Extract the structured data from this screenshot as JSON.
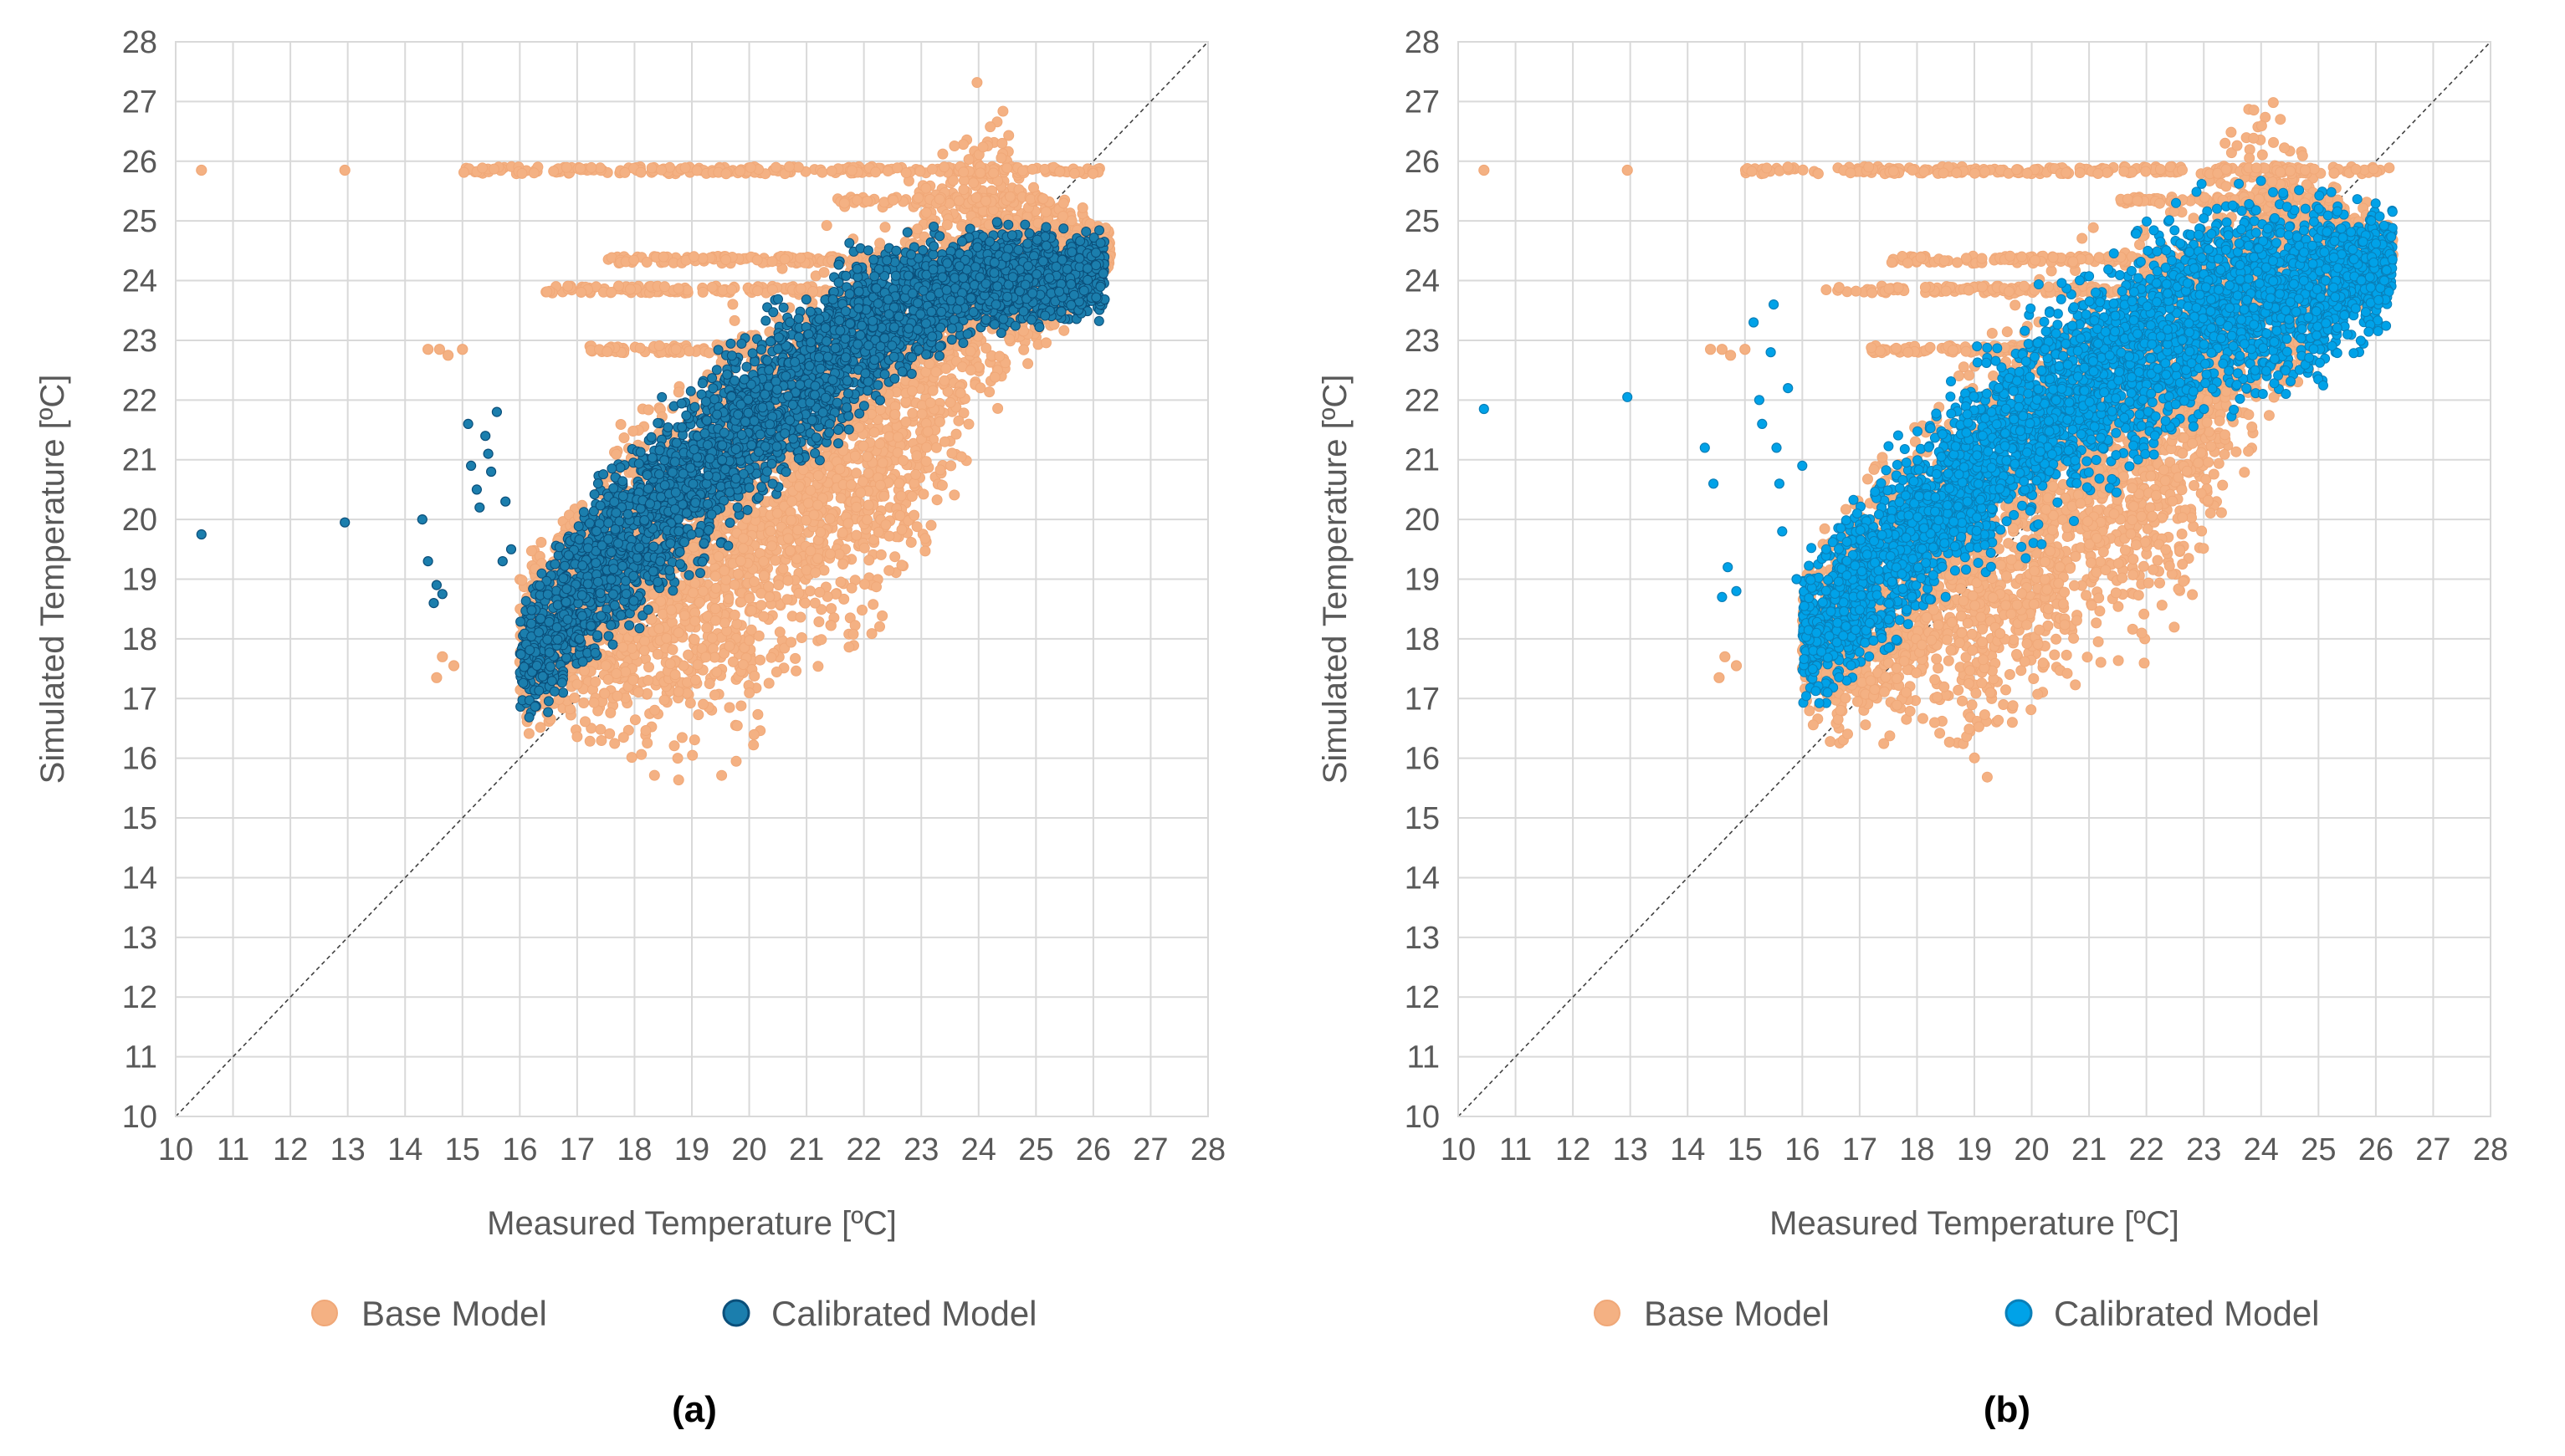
{
  "chart_data": [
    {
      "type": "scatter",
      "caption": "(a)",
      "xlabel": "Measured Temperature [ºC]",
      "ylabel": "Simulated Temperature [ºC]",
      "xlim": [
        10,
        28
      ],
      "ylim": [
        10,
        28
      ],
      "x_ticks": [
        10,
        11,
        12,
        13,
        14,
        15,
        16,
        17,
        18,
        19,
        20,
        21,
        22,
        23,
        24,
        25,
        26,
        27,
        28
      ],
      "y_ticks": [
        10,
        11,
        12,
        13,
        14,
        15,
        16,
        17,
        18,
        19,
        20,
        21,
        22,
        23,
        24,
        25,
        26,
        27,
        28
      ],
      "grid": true,
      "reference_line": "y = x (dashed)",
      "legend_position": "bottom",
      "series": [
        {
          "name": "Base Model",
          "color": "#f4b183",
          "outliers": [
            [
              10.45,
              25.85
            ],
            [
              12.95,
              25.85
            ],
            [
              14.4,
              22.85
            ],
            [
              14.6,
              22.85
            ],
            [
              14.75,
              22.75
            ],
            [
              15.0,
              22.85
            ],
            [
              14.55,
              17.35
            ],
            [
              14.65,
              17.7
            ],
            [
              14.85,
              17.55
            ]
          ],
          "plateaus": [
            {
              "y": 25.85,
              "x_range": [
                15.0,
                26.3
              ]
            },
            {
              "y": 24.35,
              "x_range": [
                17.5,
                25.0
              ]
            },
            {
              "y": 23.85,
              "x_range": [
                16.4,
                24.5
              ]
            },
            {
              "y": 22.85,
              "x_range": [
                17.2,
                23.0
              ]
            },
            {
              "y": 25.35,
              "x_range": [
                21.5,
                25.5
              ]
            }
          ],
          "cloud_upper_edge": [
            [
              16.0,
              19.5
            ],
            [
              17.0,
              21.0
            ],
            [
              18.0,
              22.5
            ],
            [
              19.0,
              23.5
            ],
            [
              20.0,
              24.5
            ],
            [
              21.0,
              25.2
            ],
            [
              22.0,
              25.6
            ],
            [
              23.0,
              26.6
            ],
            [
              24.0,
              27.8
            ],
            [
              25.0,
              26.0
            ],
            [
              26.3,
              25.0
            ]
          ],
          "cloud_lower_edge": [
            [
              16.0,
              16.2
            ],
            [
              17.0,
              15.8
            ],
            [
              18.0,
              15.6
            ],
            [
              19.0,
              15.0
            ],
            [
              20.0,
              15.4
            ],
            [
              21.0,
              16.7
            ],
            [
              22.0,
              17.2
            ],
            [
              23.0,
              18.3
            ],
            [
              24.0,
              20.8
            ],
            [
              25.0,
              22.5
            ],
            [
              26.3,
              24.0
            ]
          ]
        },
        {
          "name": "Calibrated Model",
          "color": "#1b7ead",
          "outliers": [
            [
              10.45,
              19.75
            ],
            [
              12.95,
              19.95
            ],
            [
              14.3,
              20.0
            ],
            [
              14.4,
              19.3
            ],
            [
              14.5,
              18.6
            ],
            [
              14.55,
              18.9
            ],
            [
              14.65,
              18.75
            ],
            [
              15.1,
              21.6
            ],
            [
              15.15,
              20.9
            ],
            [
              15.25,
              20.5
            ],
            [
              15.3,
              20.2
            ],
            [
              15.4,
              21.4
            ],
            [
              15.45,
              21.1
            ],
            [
              15.5,
              20.8
            ],
            [
              15.6,
              21.8
            ],
            [
              15.7,
              19.3
            ],
            [
              15.75,
              20.3
            ],
            [
              15.85,
              19.5
            ]
          ],
          "cloud_upper_edge": [
            [
              16.0,
              19.0
            ],
            [
              17.0,
              20.6
            ],
            [
              18.0,
              21.8
            ],
            [
              19.0,
              22.8
            ],
            [
              20.0,
              23.5
            ],
            [
              21.0,
              24.3
            ],
            [
              22.0,
              24.9
            ],
            [
              23.0,
              25.0
            ],
            [
              24.0,
              25.1
            ],
            [
              25.0,
              25.1
            ],
            [
              26.2,
              25.1
            ]
          ],
          "cloud_lower_edge": [
            [
              16.0,
              16.2
            ],
            [
              17.0,
              16.8
            ],
            [
              18.0,
              17.8
            ],
            [
              19.0,
              18.8
            ],
            [
              20.0,
              19.6
            ],
            [
              21.0,
              20.5
            ],
            [
              22.0,
              21.5
            ],
            [
              23.0,
              22.3
            ],
            [
              24.0,
              23.0
            ],
            [
              25.0,
              23.0
            ],
            [
              26.2,
              23.0
            ]
          ]
        }
      ]
    },
    {
      "type": "scatter",
      "caption": "(b)",
      "xlabel": "Measured Temperature [ºC]",
      "ylabel": "Simulated Temperature [ºC]",
      "xlim": [
        10,
        28
      ],
      "ylim": [
        10,
        28
      ],
      "x_ticks": [
        10,
        11,
        12,
        13,
        14,
        15,
        16,
        17,
        18,
        19,
        20,
        21,
        22,
        23,
        24,
        25,
        26,
        27,
        28
      ],
      "y_ticks": [
        10,
        11,
        12,
        13,
        14,
        15,
        16,
        17,
        18,
        19,
        20,
        21,
        22,
        23,
        24,
        25,
        26,
        27,
        28
      ],
      "grid": true,
      "reference_line": "y = x (dashed)",
      "legend_position": "bottom",
      "series": [
        {
          "name": "Base Model",
          "color": "#f4b183",
          "outliers": [
            [
              10.45,
              25.85
            ],
            [
              12.95,
              25.85
            ],
            [
              14.4,
              22.85
            ],
            [
              14.6,
              22.85
            ],
            [
              14.75,
              22.75
            ],
            [
              15.0,
              22.85
            ],
            [
              14.55,
              17.35
            ],
            [
              14.65,
              17.7
            ],
            [
              14.85,
              17.55
            ]
          ],
          "plateaus": [
            {
              "y": 25.85,
              "x_range": [
                15.0,
                26.3
              ]
            },
            {
              "y": 24.35,
              "x_range": [
                17.5,
                25.0
              ]
            },
            {
              "y": 23.85,
              "x_range": [
                16.4,
                24.5
              ]
            },
            {
              "y": 22.85,
              "x_range": [
                17.2,
                23.0
              ]
            },
            {
              "y": 25.35,
              "x_range": [
                21.5,
                25.5
              ]
            }
          ],
          "cloud_upper_edge": [
            [
              16.0,
              19.5
            ],
            [
              17.0,
              21.0
            ],
            [
              18.0,
              22.5
            ],
            [
              19.0,
              23.5
            ],
            [
              20.0,
              24.5
            ],
            [
              21.0,
              25.2
            ],
            [
              22.0,
              25.6
            ],
            [
              23.0,
              26.6
            ],
            [
              24.0,
              27.8
            ],
            [
              25.0,
              26.0
            ],
            [
              26.3,
              25.0
            ]
          ],
          "cloud_lower_edge": [
            [
              16.0,
              16.2
            ],
            [
              17.0,
              15.8
            ],
            [
              18.0,
              15.6
            ],
            [
              19.0,
              15.0
            ],
            [
              20.0,
              15.4
            ],
            [
              21.0,
              16.7
            ],
            [
              22.0,
              17.2
            ],
            [
              23.0,
              18.3
            ],
            [
              24.0,
              20.8
            ],
            [
              25.0,
              22.5
            ],
            [
              26.3,
              24.0
            ]
          ]
        },
        {
          "name": "Calibrated Model",
          "color": "#00a2e8",
          "outliers": [
            [
              10.45,
              21.85
            ],
            [
              12.95,
              22.05
            ],
            [
              14.3,
              21.2
            ],
            [
              14.45,
              20.6
            ],
            [
              14.6,
              18.7
            ],
            [
              14.7,
              19.2
            ],
            [
              14.85,
              18.8
            ],
            [
              15.15,
              23.3
            ],
            [
              15.25,
              22.0
            ],
            [
              15.3,
              21.6
            ],
            [
              15.45,
              22.8
            ],
            [
              15.5,
              23.6
            ],
            [
              15.55,
              21.2
            ],
            [
              15.6,
              20.6
            ],
            [
              15.65,
              19.8
            ],
            [
              15.75,
              22.2
            ],
            [
              15.9,
              19.0
            ],
            [
              16.0,
              20.9
            ]
          ],
          "cloud_upper_edge": [
            [
              16.0,
              19.5
            ],
            [
              17.0,
              20.8
            ],
            [
              18.0,
              22.0
            ],
            [
              19.0,
              23.0
            ],
            [
              20.0,
              24.0
            ],
            [
              21.0,
              24.6
            ],
            [
              22.0,
              25.4
            ],
            [
              23.0,
              25.85
            ],
            [
              24.0,
              25.85
            ],
            [
              25.0,
              25.85
            ],
            [
              26.2,
              25.4
            ]
          ],
          "cloud_lower_edge": [
            [
              16.0,
              16.5
            ],
            [
              17.0,
              17.0
            ],
            [
              18.0,
              17.8
            ],
            [
              19.0,
              18.6
            ],
            [
              20.0,
              19.2
            ],
            [
              21.0,
              19.8
            ],
            [
              22.0,
              20.6
            ],
            [
              23.0,
              21.3
            ],
            [
              24.0,
              21.6
            ],
            [
              25.0,
              21.8
            ],
            [
              26.3,
              23.2
            ]
          ]
        }
      ]
    }
  ]
}
